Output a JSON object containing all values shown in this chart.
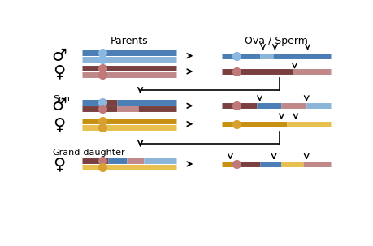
{
  "title_parents": "Parents",
  "title_ova": "Ova / Sperm",
  "label_son": "Son",
  "label_granddaughter": "Grand-daughter",
  "dark_blue": "#4a7eb5",
  "light_blue": "#8ab4d8",
  "dark_brown": "#7a4040",
  "light_brown": "#c08888",
  "dark_gold": "#c89010",
  "light_gold": "#e8c050",
  "cen_blue": "#8ab8e0",
  "cen_brown": "#c07878",
  "cen_gold": "#d8a030",
  "lw": 5,
  "cen_size": 7
}
